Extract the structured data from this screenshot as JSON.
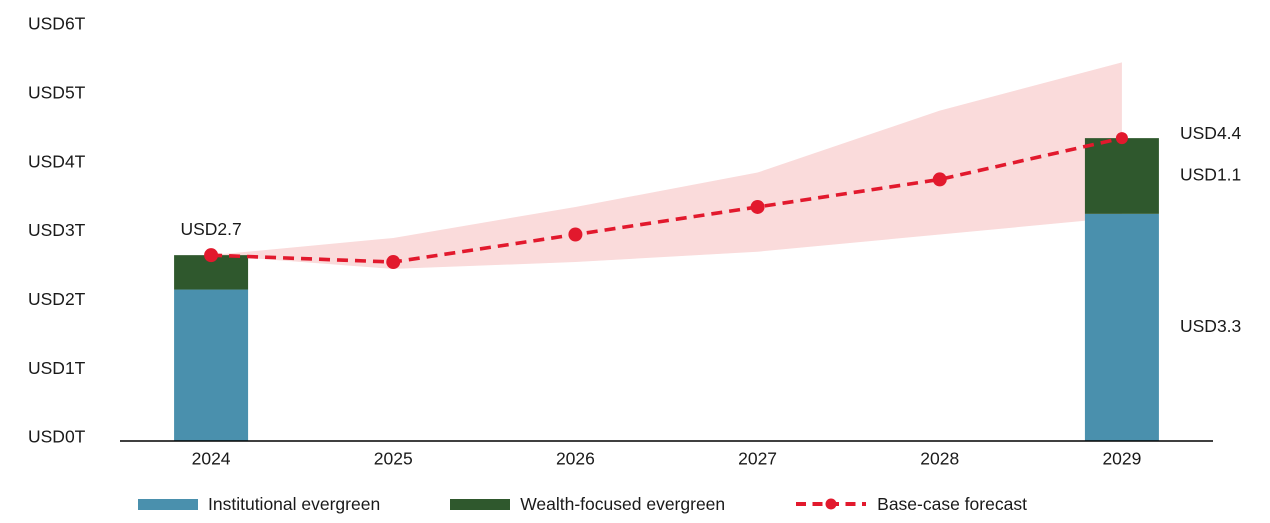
{
  "chart_data": {
    "type": "combo-stacked-bar-line-band",
    "title": "",
    "categories": [
      "2024",
      "2025",
      "2026",
      "2027",
      "2028",
      "2029"
    ],
    "y_axis": {
      "tick_labels": [
        "USD0T",
        "USD1T",
        "USD2T",
        "USD3T",
        "USD4T",
        "USD5T",
        "USD6T"
      ],
      "ylim": [
        0,
        6
      ],
      "unit": "USD trillions"
    },
    "bars": {
      "stack_series": [
        {
          "name": "Institutional evergreen",
          "color": "#4a90ad",
          "values": [
            2.2,
            null,
            null,
            null,
            null,
            3.3
          ]
        },
        {
          "name": "Wealth-focused evergreen",
          "color": "#2f582d",
          "values": [
            0.5,
            null,
            null,
            null,
            null,
            1.1
          ]
        }
      ]
    },
    "line": {
      "name": "Base-case forecast",
      "color": "#e2192d",
      "style": "dashed-with-dots",
      "values": [
        2.7,
        2.6,
        3.0,
        3.4,
        3.8,
        4.4
      ]
    },
    "band": {
      "name": "forecast-uncertainty-range",
      "color": "#fadbdb",
      "lower": [
        2.7,
        2.5,
        2.6,
        2.75,
        3.0,
        3.25
      ],
      "upper": [
        2.7,
        2.95,
        3.4,
        3.9,
        4.8,
        5.5
      ]
    },
    "annotations": [
      {
        "text": "USD2.7",
        "year": "2024",
        "position": "above-bar"
      },
      {
        "text": "USD4.4",
        "year": "2029",
        "position": "right-of-bar-top"
      },
      {
        "text": "USD1.1",
        "year": "2029",
        "position": "right-of-green-segment"
      },
      {
        "text": "USD3.3",
        "year": "2029",
        "position": "right-of-blue-segment"
      }
    ],
    "legend": [
      {
        "label": "Institutional evergreen",
        "swatch": "blue-rect"
      },
      {
        "label": "Wealth-focused evergreen",
        "swatch": "green-rect"
      },
      {
        "label": "Base-case forecast",
        "swatch": "red-dashed-line-with-dot"
      }
    ],
    "colors": {
      "axis": "#000000",
      "text": "#1a1a1a",
      "background": "#ffffff"
    },
    "layout_hints": {
      "grid": false,
      "legend_position": "bottom"
    }
  }
}
